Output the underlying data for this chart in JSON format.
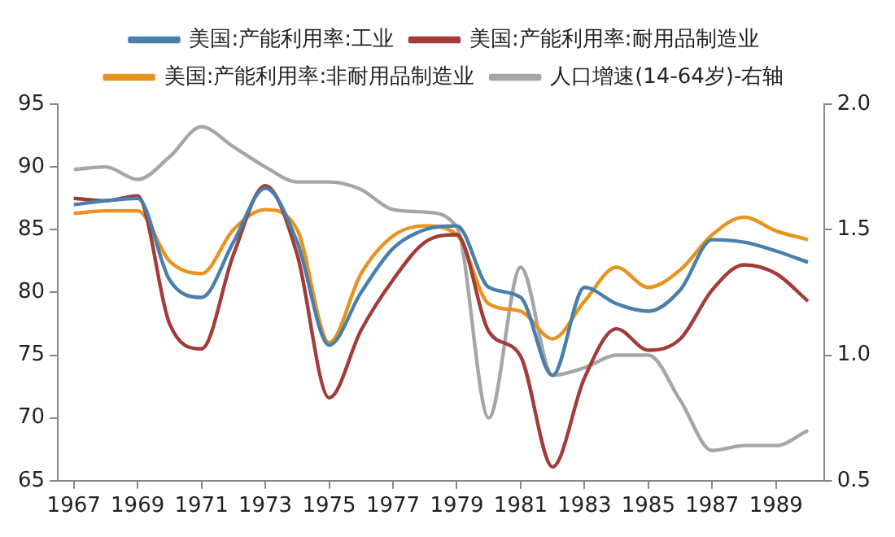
{
  "chart_data": {
    "type": "line",
    "x": [
      1967.5,
      1968.5,
      1969.5,
      1970.5,
      1971.5,
      1972.5,
      1973.5,
      1974.5,
      1975.5,
      1976.5,
      1977.5,
      1978.5,
      1979.5,
      1980.5,
      1981.5,
      1982.5,
      1983.5,
      1984.5,
      1985.5,
      1986.5,
      1987.5,
      1988.5,
      1989.5,
      1990.5
    ],
    "series": [
      {
        "name": "美国:产能利用率:工业",
        "color": "#4a7eab",
        "values": [
          87.0,
          87.3,
          87.5,
          81,
          79.6,
          84,
          88.3,
          84,
          75.8,
          80,
          83.5,
          85,
          85.3,
          80.4,
          79.6,
          73.4,
          80.4,
          79.1,
          78.5,
          80.2,
          84.2,
          84.0,
          83.3,
          82.4
        ]
      },
      {
        "name": "美国:产能利用率:耐用品制造业",
        "color": "#a33b39",
        "values": [
          87.5,
          87.3,
          87.7,
          77.5,
          75.5,
          83,
          88.5,
          83,
          71.6,
          77,
          81,
          84,
          84.6,
          76.9,
          74.9,
          66.1,
          73.2,
          77.1,
          75.4,
          76.3,
          80.2,
          82.2,
          81.5,
          79.3
        ]
      },
      {
        "name": "美国:产能利用率:非耐用品制造业",
        "color": "#e8931f",
        "values": [
          86.3,
          86.5,
          86.5,
          82.5,
          81.5,
          85,
          86.6,
          85,
          76,
          81.5,
          84.5,
          85.3,
          84.6,
          79.1,
          78.5,
          76.3,
          79.3,
          82.0,
          80.4,
          81.8,
          84.6,
          86.0,
          84.9,
          84.2
        ]
      },
      {
        "name": "人口增速(14-64岁)-右轴",
        "color": "#a6a6a6",
        "axis": "y2",
        "values": [
          1.74,
          1.75,
          1.7,
          1.79,
          1.91,
          1.83,
          1.75,
          1.69,
          1.69,
          1.66,
          1.58,
          1.57,
          1.51,
          0.75,
          1.35,
          0.92,
          0.95,
          1.0,
          1.0,
          0.82,
          0.62,
          0.64,
          0.64,
          0.7
        ]
      }
    ],
    "xlim": [
      1967,
      1991
    ],
    "xticks": [
      {
        "value": 1967.5,
        "label": "1967"
      },
      {
        "value": 1969.5,
        "label": "1969"
      },
      {
        "value": 1971.5,
        "label": "1971"
      },
      {
        "value": 1973.5,
        "label": "1973"
      },
      {
        "value": 1975.5,
        "label": "1975"
      },
      {
        "value": 1977.5,
        "label": "1977"
      },
      {
        "value": 1979.5,
        "label": "1979"
      },
      {
        "value": 1981.5,
        "label": "1981"
      },
      {
        "value": 1983.5,
        "label": "1983"
      },
      {
        "value": 1985.5,
        "label": "1985"
      },
      {
        "value": 1987.5,
        "label": "1987"
      },
      {
        "value": 1989.5,
        "label": "1989"
      }
    ],
    "ylim": [
      65,
      95
    ],
    "yticks": [
      65,
      70,
      75,
      80,
      85,
      90,
      95
    ],
    "y2lim": [
      0.5,
      2.0
    ],
    "y2ticks": [
      {
        "value": 0.5,
        "label": "0.5"
      },
      {
        "value": 1.0,
        "label": "1.0"
      },
      {
        "value": 1.5,
        "label": "1.5"
      },
      {
        "value": 2.0,
        "label": "2.0"
      }
    ],
    "grid": false,
    "legend": "top",
    "marker": "none",
    "line_style": "solid"
  }
}
